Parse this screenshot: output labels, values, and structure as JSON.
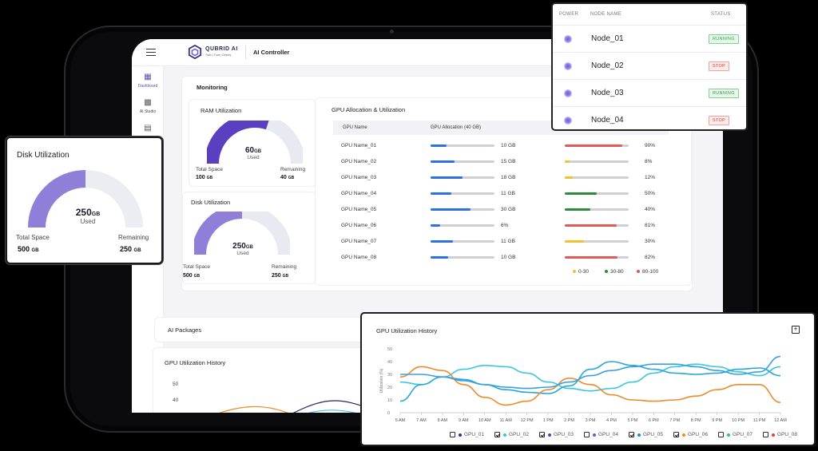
{
  "app": {
    "brand": "QUBRID AI",
    "brand_sub": "Train | Tune | Deploy",
    "title": "AI Controller"
  },
  "sidebar": {
    "items": [
      {
        "label": "Dashboard",
        "icon": "dashboard-icon"
      },
      {
        "label": "AI Studio",
        "icon": "ai-studio-icon"
      },
      {
        "label": "",
        "icon": "image-icon"
      }
    ]
  },
  "monitoring": {
    "title": "Monitoring",
    "ram": {
      "title": "RAM Utilization",
      "used_value": "60",
      "used_unit": "GB",
      "used_label": "Used",
      "total_label": "Total Space",
      "total_value": "100",
      "total_unit": "GB",
      "remaining_label": "Remaining",
      "remaining_value": "40",
      "remaining_unit": "GB",
      "fraction": 0.6
    },
    "disk": {
      "title": "Disk Utilization",
      "used_value": "250",
      "used_unit": "GB",
      "used_label": "Used",
      "total_label": "Total Space",
      "total_value": "500",
      "total_unit": "GB",
      "remaining_label": "Remaining",
      "remaining_value": "250",
      "remaining_unit": "GB",
      "fraction": 0.5
    }
  },
  "gpu_allocation": {
    "title": "GPU Allocation & Utilization",
    "col_name": "GPU Name",
    "col_alloc": "GPU Allocation (40 GB)",
    "rows": [
      {
        "name": "GPU Name_01",
        "mem": "10 GB",
        "mem_frac": 0.25,
        "util": "90%",
        "util_frac": 0.9
      },
      {
        "name": "GPU Name_02",
        "mem": "15 GB",
        "mem_frac": 0.38,
        "util": "8%",
        "util_frac": 0.08
      },
      {
        "name": "GPU Name_03",
        "mem": "18 GB",
        "mem_frac": 0.5,
        "util": "12%",
        "util_frac": 0.12
      },
      {
        "name": "GPU Name_04",
        "mem": "11 GB",
        "mem_frac": 0.32,
        "util": "50%",
        "util_frac": 0.5
      },
      {
        "name": "GPU Name_05",
        "mem": "30 GB",
        "mem_frac": 0.62,
        "util": "40%",
        "util_frac": 0.4
      },
      {
        "name": "GPU Name_06",
        "mem": "6%",
        "mem_frac": 0.15,
        "util": "81%",
        "util_frac": 0.81
      },
      {
        "name": "GPU Name_07",
        "mem": "11 GB",
        "mem_frac": 0.35,
        "util": "30%",
        "util_frac": 0.3
      },
      {
        "name": "GPU Name_08",
        "mem": "10 GB",
        "mem_frac": 0.28,
        "util": "82%",
        "util_frac": 0.82
      }
    ],
    "legend": [
      {
        "label": "0-30",
        "color": "#f2c12e"
      },
      {
        "label": "30-80",
        "color": "#2e8b3a"
      },
      {
        "label": "80-100",
        "color": "#e05a5a"
      }
    ]
  },
  "ai_packages": {
    "title": "AI Packages"
  },
  "history_bg": {
    "title": "GPU Utilization History",
    "y_ticks": [
      "50",
      "40"
    ]
  },
  "disk_card": {
    "title": "Disk Utilization",
    "used_value": "250",
    "used_unit": "GB",
    "used_label": "Used",
    "total_label": "Total Space",
    "total_value": "500",
    "total_unit": "GB",
    "remaining_label": "Remaining",
    "remaining_value": "250",
    "remaining_unit": "GB",
    "fraction": 0.5
  },
  "nodes": {
    "col_power": "POWER",
    "col_name": "NODE NAME",
    "col_status": "STATUS",
    "rows": [
      {
        "name": "Node_01",
        "status": "RUNNING",
        "state": "running"
      },
      {
        "name": "Node_02",
        "status": "STOP",
        "state": "stop"
      },
      {
        "name": "Node_03",
        "status": "RUNNING",
        "state": "running"
      },
      {
        "name": "Node_04",
        "status": "STOP",
        "state": "stop"
      }
    ]
  },
  "history": {
    "title": "GPU Utilization History",
    "legend": [
      {
        "label": "GPU_01",
        "checked": false,
        "color": "#1f3b8c"
      },
      {
        "label": "GPU_02",
        "checked": true,
        "color": "#3cc6e0"
      },
      {
        "label": "GPU_03",
        "checked": true,
        "color": "#3a4fb0"
      },
      {
        "label": "GPU_04",
        "checked": false,
        "color": "#7a55c8"
      },
      {
        "label": "GPU_05",
        "checked": true,
        "color": "#1e90c8"
      },
      {
        "label": "GPU_06",
        "checked": true,
        "color": "#f08a2c"
      },
      {
        "label": "GPU_07",
        "checked": false,
        "color": "#2ebfa0"
      },
      {
        "label": "GPU_08",
        "checked": false,
        "color": "#e04040"
      }
    ]
  },
  "chart_data": {
    "type": "line",
    "title": "GPU Utilization History",
    "ylabel": "Utilization (%)",
    "xlabel": "",
    "ylim": [
      0,
      50
    ],
    "y_ticks": [
      0,
      10,
      20,
      30,
      40,
      50
    ],
    "categories": [
      "5 AM",
      "7 AM",
      "8 AM",
      "9 AM",
      "10 AM",
      "11 AM",
      "12 PM",
      "1 PM",
      "2 PM",
      "3 PM",
      "4 PM",
      "5 PM",
      "6 PM",
      "7 PM",
      "8 PM",
      "9 PM",
      "10 PM",
      "11 PM",
      "12 AM"
    ],
    "series": [
      {
        "name": "GPU_02",
        "color": "#3cc6e0",
        "values": [
          24,
          22,
          28,
          34,
          37,
          36,
          31,
          24,
          19,
          17,
          19,
          24,
          31,
          36,
          38,
          36,
          32,
          29,
          36
        ]
      },
      {
        "name": "GPU_05",
        "color": "#2aa5d8",
        "values": [
          9,
          22,
          28,
          26,
          22,
          18,
          16,
          15,
          21,
          34,
          40,
          37,
          34,
          31,
          30,
          31,
          34,
          35,
          29
        ]
      },
      {
        "name": "GPU_06",
        "color": "#f08a2c",
        "values": [
          28,
          36,
          33,
          22,
          12,
          6,
          9,
          18,
          27,
          22,
          14,
          10,
          9,
          10,
          13,
          18,
          22,
          22,
          8
        ]
      },
      {
        "name": "",
        "color": "#3aa0dc",
        "values": [
          30,
          30,
          28,
          25,
          22,
          20,
          19,
          20,
          24,
          29,
          33,
          36,
          38,
          38,
          36,
          33,
          30,
          32,
          44
        ]
      }
    ]
  }
}
